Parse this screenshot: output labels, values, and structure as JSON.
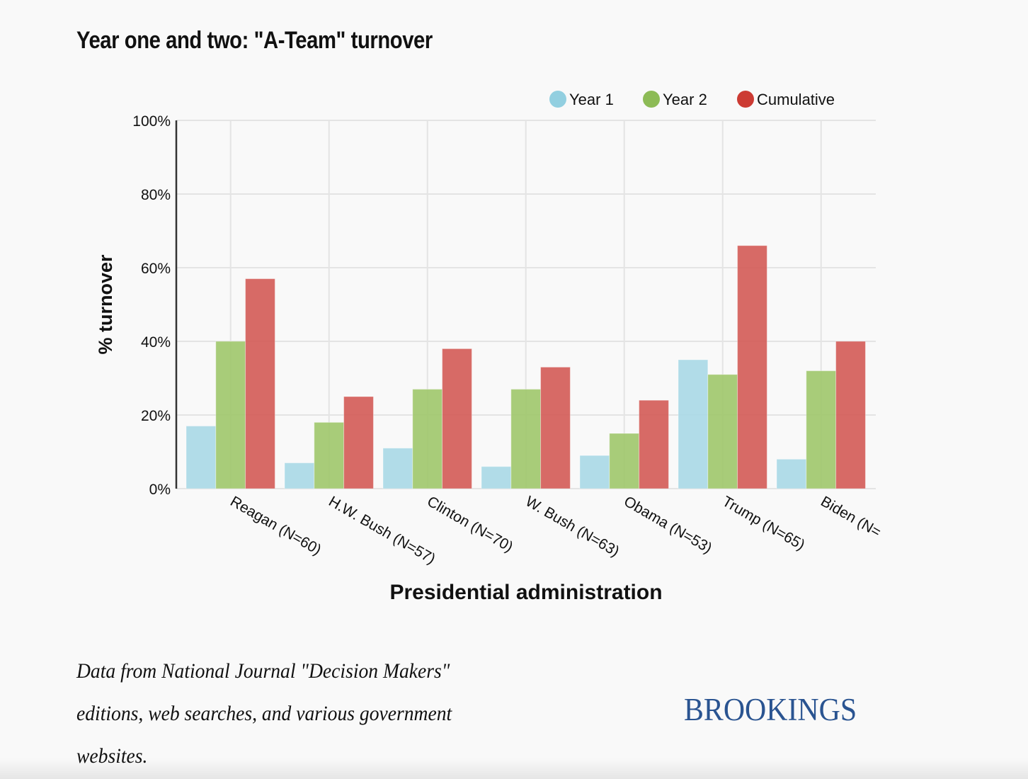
{
  "title": "Year one and two: \"A-Team\" turnover",
  "source_lines": [
    "Data from National Journal \"Decision Makers\"",
    "editions, web searches, and various government",
    "websites."
  ],
  "logo_text": "BROOKINGS",
  "colors": {
    "year1": "#a9d8e6",
    "year2": "#9fc66a",
    "cumulative": "#d35a55",
    "legend_year1": "#92cfe0",
    "legend_year2": "#8dbb56",
    "legend_cumulative": "#cc3b33",
    "logo": "#2a5491"
  },
  "chart_data": {
    "type": "bar",
    "title": "Year one and two: \"A-Team\" turnover",
    "xlabel": "Presidential administration",
    "ylabel": "% turnover",
    "ylim": [
      0,
      100
    ],
    "yticks": [
      0,
      20,
      40,
      60,
      80,
      100
    ],
    "ytick_labels": [
      "0%",
      "20%",
      "40%",
      "60%",
      "80%",
      "100%"
    ],
    "grid": true,
    "legend_position": "top-right",
    "categories": [
      "Reagan (N=60)",
      "H.W. Bush (N=57)",
      "Clinton (N=70)",
      "W. Bush (N=63)",
      "Obama (N=53)",
      "Trump (N=65)",
      "Biden (N="
    ],
    "series": [
      {
        "name": "Year 1",
        "values": [
          17,
          7,
          11,
          6,
          9,
          35,
          8
        ]
      },
      {
        "name": "Year 2",
        "values": [
          40,
          18,
          27,
          27,
          15,
          31,
          32
        ]
      },
      {
        "name": "Cumulative",
        "values": [
          57,
          25,
          38,
          33,
          24,
          66,
          40
        ]
      }
    ]
  }
}
